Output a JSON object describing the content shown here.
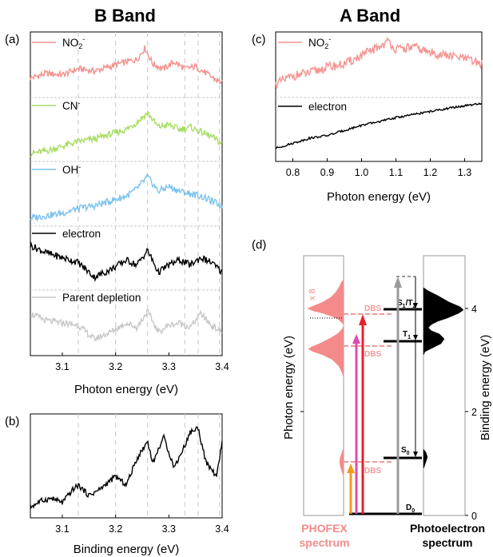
{
  "titles": {
    "b_band": "B Band",
    "a_band": "A Band"
  },
  "panel_labels": {
    "a": "(a)",
    "b": "(b)",
    "c": "(c)",
    "d": "(d)"
  },
  "colors": {
    "no2": "#f4928f",
    "cn": "#a8dd64",
    "oh": "#7cc2ef",
    "electron": "#000000",
    "parent": "#c8c8c8",
    "phofex": "#f48a8a",
    "magenta": "#e04ab0",
    "red": "#e8202a",
    "orange": "#f39c18",
    "grey_arrow": "#9a9a9a",
    "dashed_grid": "#d0d0d0"
  },
  "chart_data": [
    {
      "id": "a",
      "type": "line",
      "xlabel": "Photon energy (eV)",
      "xlim": [
        3.04,
        3.4
      ],
      "xticks": [
        "3.1",
        "3.2",
        "3.3",
        "3.4"
      ],
      "dashed_markers_x": [
        3.13,
        3.2,
        3.26,
        3.33,
        3.355,
        3.395
      ],
      "series": [
        {
          "name": "NO2-",
          "label_main": "NO",
          "label_sub": "2",
          "label_sup": "-",
          "color": "#f4928f",
          "x": [
            3.04,
            3.07,
            3.1,
            3.13,
            3.16,
            3.19,
            3.22,
            3.24,
            3.255,
            3.27,
            3.29,
            3.31,
            3.33,
            3.35,
            3.37,
            3.39,
            3.4
          ],
          "y": [
            0.35,
            0.45,
            0.42,
            0.55,
            0.5,
            0.6,
            0.7,
            0.75,
            1.0,
            0.65,
            0.55,
            0.7,
            0.55,
            0.6,
            0.45,
            0.3,
            0.25
          ]
        },
        {
          "name": "CN-",
          "label_main": "CN",
          "label_sub": "",
          "label_sup": "-",
          "color": "#a8dd64",
          "x": [
            3.04,
            3.07,
            3.1,
            3.13,
            3.16,
            3.19,
            3.22,
            3.24,
            3.26,
            3.28,
            3.3,
            3.32,
            3.34,
            3.36,
            3.38,
            3.4
          ],
          "y": [
            0.1,
            0.15,
            0.25,
            0.35,
            0.4,
            0.5,
            0.6,
            0.75,
            0.95,
            0.65,
            0.7,
            0.6,
            0.65,
            0.55,
            0.45,
            0.3
          ]
        },
        {
          "name": "OH-",
          "label_main": "OH",
          "label_sub": "",
          "label_sup": "-",
          "color": "#7cc2ef",
          "x": [
            3.04,
            3.07,
            3.1,
            3.13,
            3.16,
            3.19,
            3.22,
            3.24,
            3.26,
            3.28,
            3.3,
            3.32,
            3.34,
            3.36,
            3.38,
            3.4
          ],
          "y": [
            0.1,
            0.15,
            0.2,
            0.3,
            0.35,
            0.45,
            0.55,
            0.7,
            0.95,
            0.65,
            0.75,
            0.65,
            0.6,
            0.55,
            0.45,
            0.35
          ]
        },
        {
          "name": "electron",
          "label_main": "electron",
          "label_sub": "",
          "label_sup": "",
          "color": "#000000",
          "x": [
            3.04,
            3.07,
            3.1,
            3.13,
            3.16,
            3.19,
            3.22,
            3.24,
            3.26,
            3.28,
            3.3,
            3.32,
            3.34,
            3.36,
            3.38,
            3.4
          ],
          "y": [
            0.85,
            0.7,
            0.6,
            0.5,
            0.2,
            0.35,
            0.55,
            0.45,
            0.75,
            0.3,
            0.45,
            0.55,
            0.45,
            0.6,
            0.5,
            0.3
          ]
        },
        {
          "name": "Parent depletion",
          "label_main": "Parent depletion",
          "label_sub": "",
          "label_sup": "",
          "color": "#c8c8c8",
          "x": [
            3.04,
            3.07,
            3.1,
            3.13,
            3.16,
            3.19,
            3.22,
            3.24,
            3.26,
            3.28,
            3.3,
            3.32,
            3.34,
            3.36,
            3.38,
            3.4
          ],
          "y": [
            0.75,
            0.6,
            0.55,
            0.5,
            0.2,
            0.35,
            0.55,
            0.45,
            0.8,
            0.35,
            0.5,
            0.55,
            0.45,
            0.75,
            0.5,
            0.35
          ]
        }
      ]
    },
    {
      "id": "b",
      "type": "line",
      "xlabel": "Binding energy (eV)",
      "xlim": [
        3.04,
        3.4
      ],
      "xticks": [
        "3.1",
        "3.2",
        "3.3",
        "3.4"
      ],
      "series": [
        {
          "name": "",
          "color": "#000000",
          "x": [
            3.04,
            3.06,
            3.08,
            3.1,
            3.12,
            3.13,
            3.15,
            3.17,
            3.19,
            3.2,
            3.22,
            3.24,
            3.26,
            3.27,
            3.29,
            3.31,
            3.33,
            3.34,
            3.355,
            3.37,
            3.39,
            3.4
          ],
          "y": [
            0.05,
            0.12,
            0.15,
            0.1,
            0.25,
            0.3,
            0.18,
            0.25,
            0.35,
            0.4,
            0.3,
            0.6,
            0.8,
            0.55,
            0.85,
            0.5,
            0.75,
            0.9,
            0.95,
            0.55,
            0.4,
            0.8
          ]
        }
      ]
    },
    {
      "id": "c",
      "type": "line",
      "xlabel": "Photon energy (eV)",
      "xlim": [
        0.75,
        1.35
      ],
      "xticks": [
        "0.8",
        "0.9",
        "1.0",
        "1.1",
        "1.2",
        "1.3"
      ],
      "series": [
        {
          "name": "NO2-",
          "label_main": "NO",
          "label_sub": "2",
          "label_sup": "-",
          "color": "#f4928f",
          "x": [
            0.75,
            0.8,
            0.85,
            0.9,
            0.95,
            1.0,
            1.05,
            1.08,
            1.1,
            1.15,
            1.2,
            1.25,
            1.3,
            1.35
          ],
          "y": [
            0.2,
            0.35,
            0.4,
            0.5,
            0.55,
            0.7,
            0.85,
            0.95,
            0.8,
            0.85,
            0.75,
            0.7,
            0.65,
            0.55
          ]
        },
        {
          "name": "electron",
          "label_main": "electron",
          "label_sub": "",
          "label_sup": "",
          "color": "#000000",
          "x": [
            0.75,
            0.8,
            0.85,
            0.9,
            0.95,
            1.0,
            1.05,
            1.1,
            1.15,
            1.2,
            1.25,
            1.3,
            1.35
          ],
          "y": [
            0.1,
            0.2,
            0.3,
            0.35,
            0.45,
            0.55,
            0.62,
            0.7,
            0.76,
            0.82,
            0.88,
            0.93,
            0.97
          ]
        }
      ]
    },
    {
      "id": "d",
      "type": "diagram",
      "left_ylabel": "Photon energy (eV)",
      "right_ylabel": "Binding energy (eV)",
      "right_yticks": [
        "0",
        "2",
        "4"
      ],
      "phofex_label": [
        "PHOFEX",
        "spectrum"
      ],
      "photoelectron_label": [
        "Photoelectron",
        "spectrum"
      ],
      "x8_label": "x 8",
      "dbs_labels": [
        "DBS",
        "DBS",
        "DBS"
      ],
      "states": {
        "d0": "D",
        "d0_sub": "0",
        "s0": "S",
        "s0_sub": "0",
        "t1": "T",
        "t1_sub": "1",
        "s1t2": "S",
        "s1t2_sub": "1",
        "s1t2_mid": "/T",
        "s1t2_sub2": "2"
      }
    }
  ]
}
